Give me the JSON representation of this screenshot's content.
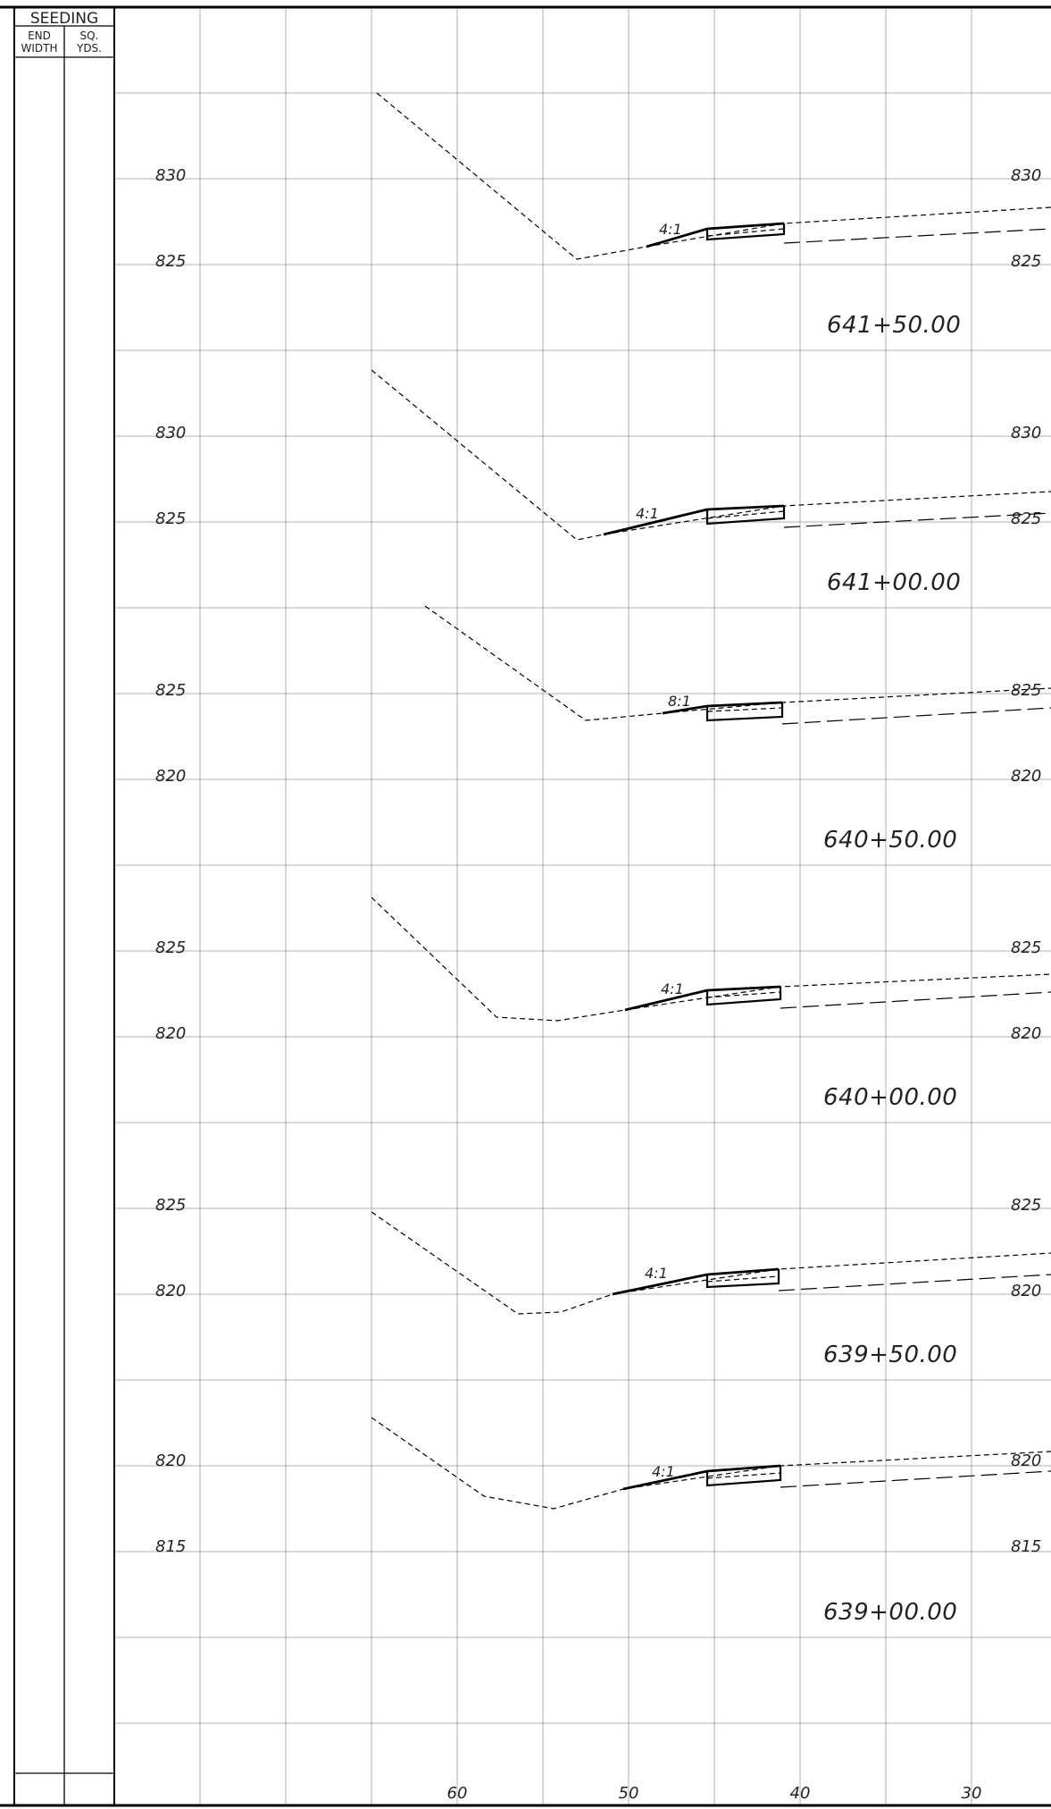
{
  "seeding_table": {
    "title": "SEEDING",
    "col1_line1": "END",
    "col1_line2": "WIDTH",
    "col2_line1": "SQ.",
    "col2_line2": "YDS."
  },
  "bottom_offsets": [
    "60",
    "50",
    "40",
    "30"
  ],
  "sections": [
    {
      "station": "641+50.00",
      "elev_upper": "830",
      "elev_lower": "825",
      "slope": "4:1"
    },
    {
      "station": "641+00.00",
      "elev_upper": "830",
      "elev_lower": "825",
      "slope": "4:1"
    },
    {
      "station": "640+50.00",
      "elev_upper": "825",
      "elev_lower": "820",
      "slope": "8:1"
    },
    {
      "station": "640+00.00",
      "elev_upper": "825",
      "elev_lower": "820",
      "slope": "4:1"
    },
    {
      "station": "639+50.00",
      "elev_upper": "825",
      "elev_lower": "820",
      "slope": "4:1"
    },
    {
      "station": "639+00.00",
      "elev_upper": "820",
      "elev_lower": "815",
      "slope": "4:1"
    }
  ]
}
